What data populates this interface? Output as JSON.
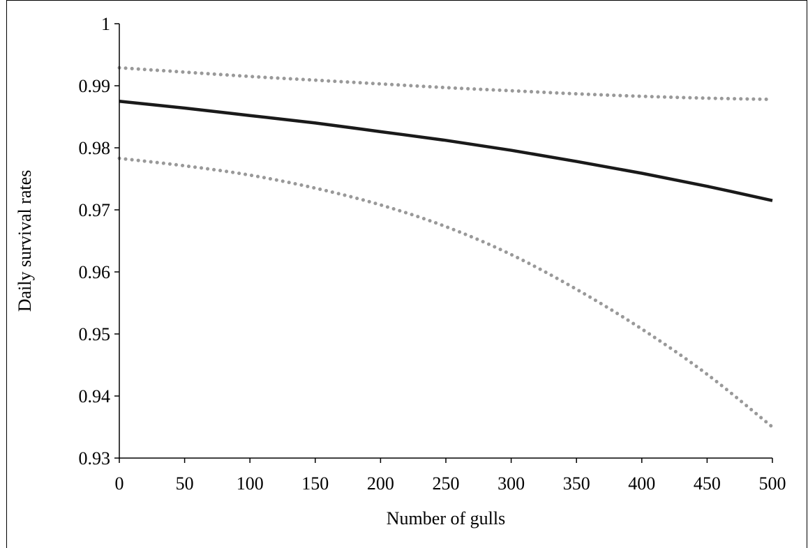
{
  "chart_data": {
    "type": "line",
    "title": "",
    "xlabel": "Number of gulls",
    "ylabel": "Daily survival rates",
    "xlim": [
      0,
      500
    ],
    "ylim": [
      0.93,
      1
    ],
    "x_ticks": [
      "0",
      "50",
      "100",
      "150",
      "200",
      "250",
      "300",
      "350",
      "400",
      "450",
      "500"
    ],
    "y_ticks": [
      "0.93",
      "0.94",
      "0.95",
      "0.96",
      "0.97",
      "0.98",
      "0.99",
      "1"
    ],
    "grid": false,
    "legend": "none",
    "x": [
      0,
      50,
      100,
      150,
      200,
      250,
      300,
      350,
      400,
      450,
      500
    ],
    "series": [
      {
        "style": "solid",
        "color": "#1a1a1a",
        "values": [
          0.9875,
          0.9864,
          0.9852,
          0.984,
          0.9826,
          0.9812,
          0.9796,
          0.9778,
          0.9759,
          0.9738,
          0.9715
        ]
      },
      {
        "style": "dotted",
        "color": "#999999",
        "values": [
          0.9929,
          0.9922,
          0.9915,
          0.9909,
          0.9903,
          0.9897,
          0.9892,
          0.9887,
          0.9883,
          0.988,
          0.9878
        ]
      },
      {
        "style": "dotted",
        "color": "#999999",
        "values": [
          0.9783,
          0.9771,
          0.9756,
          0.9735,
          0.9708,
          0.9673,
          0.9628,
          0.9572,
          0.9508,
          0.9435,
          0.935
        ]
      }
    ]
  }
}
